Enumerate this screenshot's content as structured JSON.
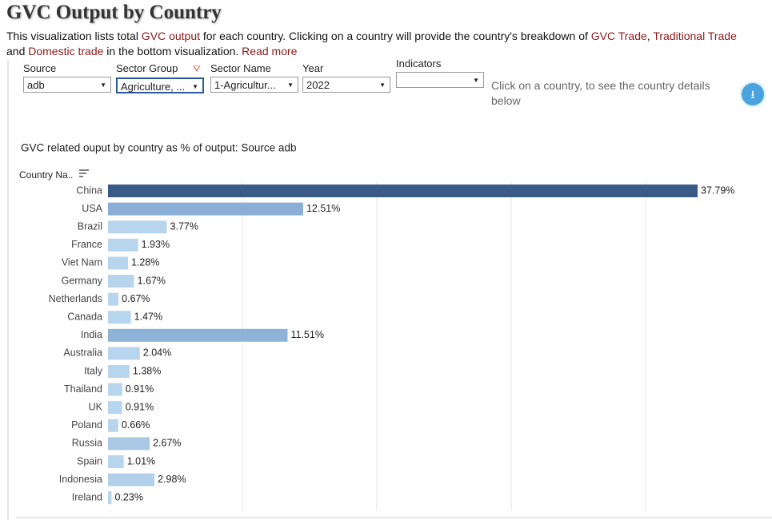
{
  "header": {
    "title": "GVC Output by Country",
    "description": [
      {
        "text": "This visualization lists total "
      },
      {
        "text": "GVC output",
        "link": true
      },
      {
        "text": " for each country. Clicking on a country will provide the country's breakdown of "
      },
      {
        "text": "GVC Trade",
        "link": true
      },
      {
        "text": ", "
      },
      {
        "text": "Traditional Trade",
        "link": true
      },
      {
        "text": " and "
      },
      {
        "text": "Domestic trade",
        "link": true
      },
      {
        "text": " in the bottom visualization. "
      },
      {
        "text": "Read more",
        "link": true
      }
    ]
  },
  "filters": [
    {
      "label": "Source",
      "value": "adb"
    },
    {
      "label": "Sector Group",
      "value": "Agriculture, ...",
      "filtered": true
    },
    {
      "label": "Sector Name",
      "value": "1-Agricultur..."
    },
    {
      "label": "Year",
      "value": "2022"
    },
    {
      "label": "Indicators"
    }
  ],
  "note": "Click on a country, to see the country details below",
  "chart_data": {
    "type": "bar",
    "orientation": "horizontal",
    "title": "GVC related ouput by country as % of output: Source adb",
    "category_header": "Country Na..",
    "categories": [
      "China",
      "USA",
      "Brazil",
      "France",
      "Viet Nam",
      "Germany",
      "Netherlands",
      "Canada",
      "India",
      "Australia",
      "Italy",
      "Thailand",
      "UK",
      "Poland",
      "Russia",
      "Spain",
      "Indonesia",
      "Ireland"
    ],
    "values": [
      37.79,
      12.51,
      3.77,
      1.93,
      1.28,
      1.67,
      0.67,
      1.47,
      11.51,
      2.04,
      1.38,
      0.91,
      0.91,
      0.66,
      2.67,
      1.01,
      2.98,
      0.23
    ],
    "value_labels": [
      "37.79%",
      "12.51%",
      "3.77%",
      "1.93%",
      "1.28%",
      "1.67%",
      "0.67%",
      "1.47%",
      "11.51%",
      "2.04%",
      "1.38%",
      "0.91%",
      "0.91%",
      "0.66%",
      "2.67%",
      "1.01%",
      "2.98%",
      "0.23%"
    ],
    "colors": [
      "#3a5a86",
      "#8aaed5",
      "#b8d5ee",
      "#b8d5ee",
      "#b8d5ee",
      "#b8d5ee",
      "#b8d5ee",
      "#b8d5ee",
      "#8fb2d8",
      "#b8d5ee",
      "#b8d5ee",
      "#b8d5ee",
      "#b8d5ee",
      "#b8d5ee",
      "#abc8e6",
      "#b8d5ee",
      "#b3d0eb",
      "#b8d5ee"
    ],
    "grid": true
  }
}
